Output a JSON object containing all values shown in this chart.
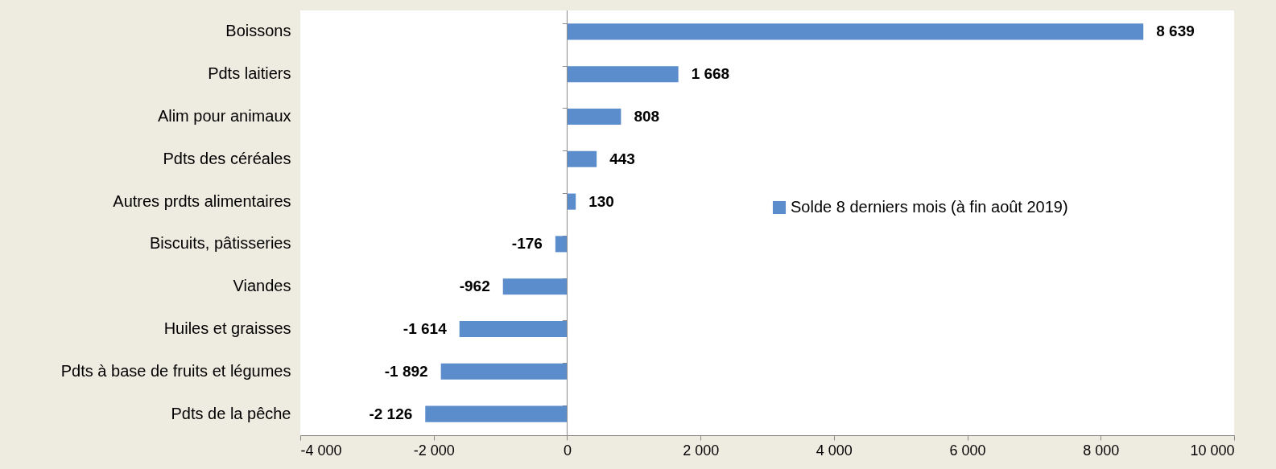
{
  "chart_data": {
    "type": "bar",
    "orientation": "horizontal",
    "categories": [
      "Boissons",
      "Pdts laitiers",
      "Alim pour animaux",
      "Pdts des céréales",
      "Autres prdts alimentaires",
      "Biscuits, pâtisseries",
      "Viandes",
      "Huiles et graisses",
      "Pdts à base de fruits et légumes",
      "Pdts de la pêche"
    ],
    "series": [
      {
        "name": "Solde 8 derniers mois (à fin août 2019)",
        "color": "#5b8ccb",
        "values": [
          8639,
          1668,
          808,
          443,
          130,
          -176,
          -962,
          -1614,
          -1892,
          -2126
        ],
        "value_labels": [
          "8 639",
          "1 668",
          "808",
          "443",
          "130",
          "-176",
          "-962",
          "-1 614",
          "-1 892",
          "-2 126"
        ]
      }
    ],
    "xlim": [
      -4000,
      10000
    ],
    "xticks": [
      {
        "value": -4000,
        "label": "-4 000"
      },
      {
        "value": -2000,
        "label": "-2 000"
      },
      0,
      {
        "value": 2000,
        "label": "2 000"
      },
      {
        "value": 4000,
        "label": "4 000"
      },
      {
        "value": 6000,
        "label": "6 000"
      },
      {
        "value": 8000,
        "label": "8 000"
      },
      {
        "value": 10000,
        "label": "10 000"
      }
    ],
    "ref_lines": [
      {
        "axis": "x",
        "value": 0,
        "color": "#8c8c8c"
      }
    ],
    "grid": false,
    "legend": "right"
  }
}
